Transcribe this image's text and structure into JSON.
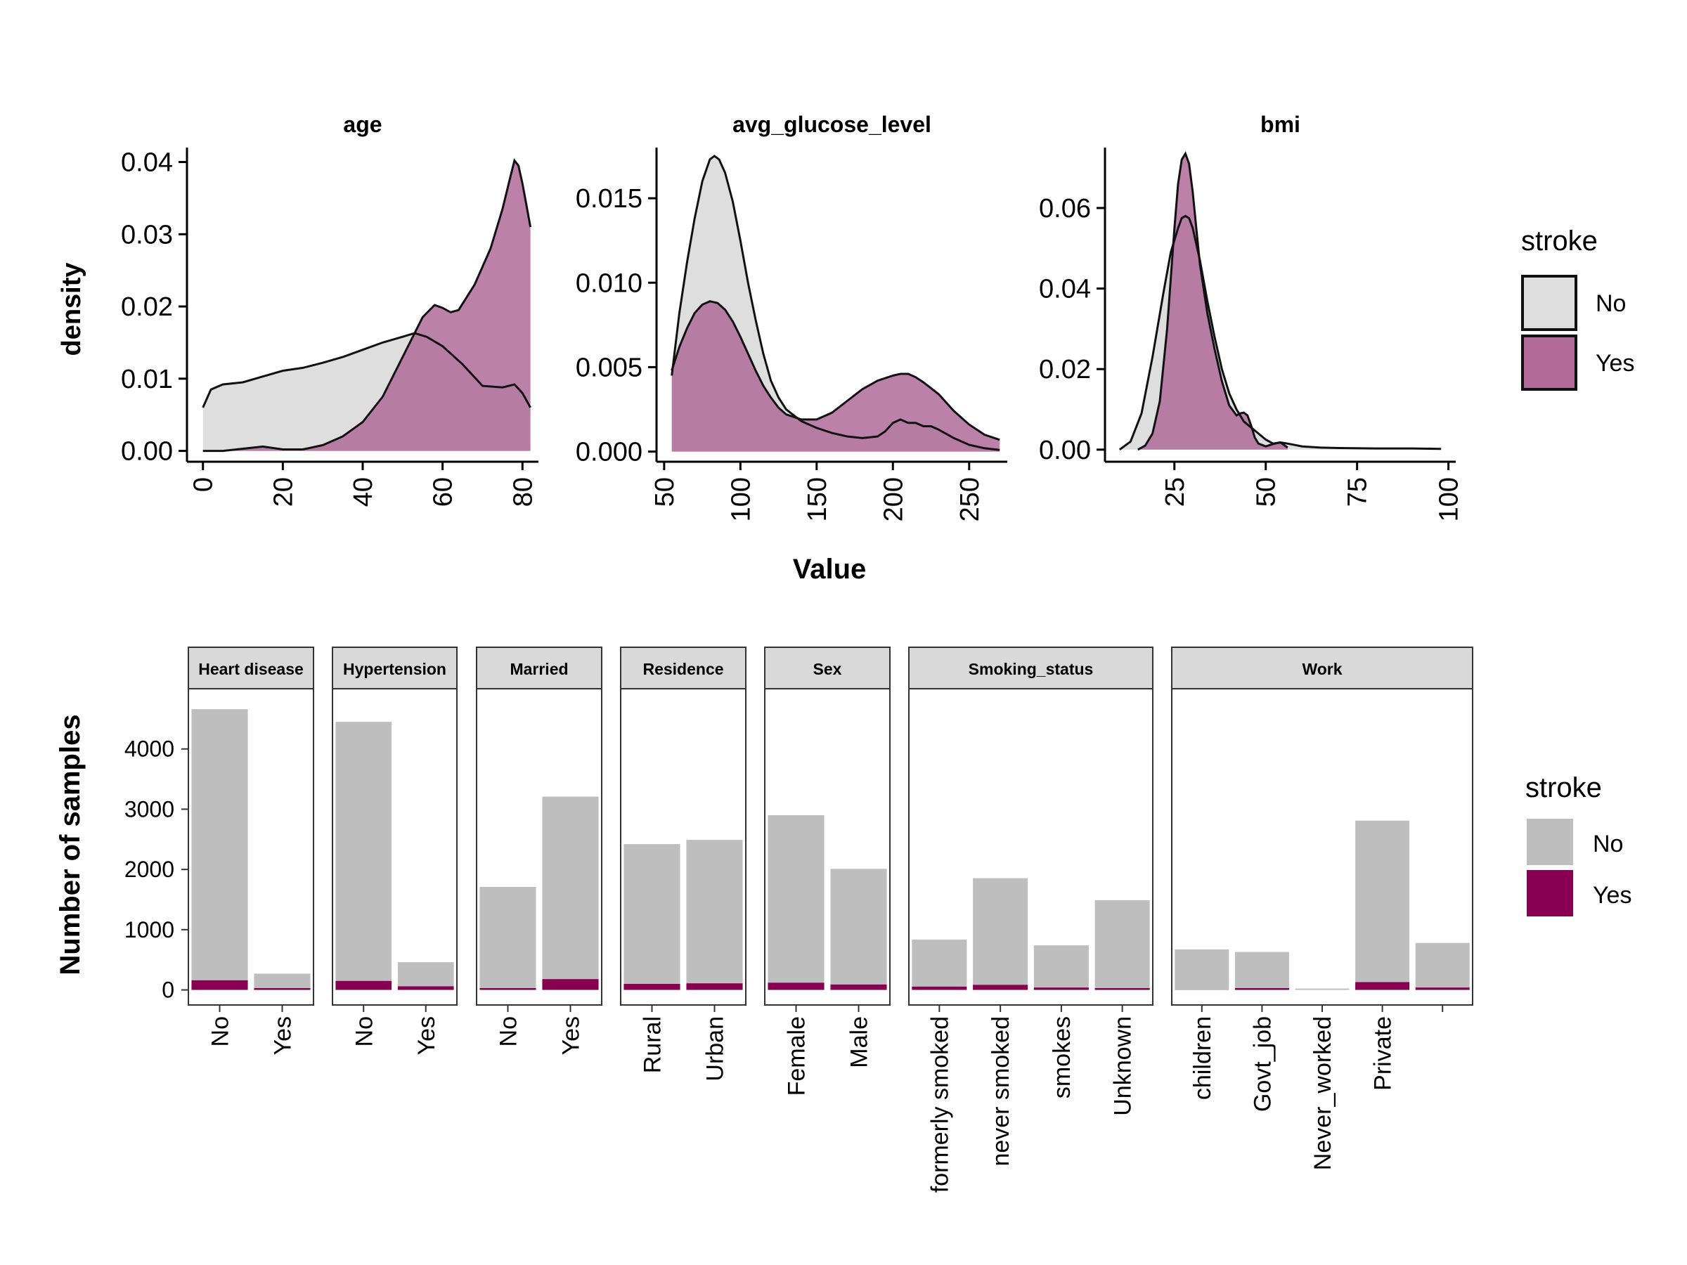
{
  "colors": {
    "no_density": "#dedede",
    "yes_density": "#b06b9a",
    "no_bar": "#bebebe",
    "yes_bar": "#870052",
    "strip": "#d9d9d9"
  },
  "chart_data": [
    {
      "type": "area",
      "panel_group": "density",
      "ylabel": "density",
      "xlabel": "Value",
      "legend_title": "stroke",
      "legend_position": "right",
      "legend": [
        "No",
        "Yes"
      ],
      "facets": [
        {
          "title": "age",
          "xlim": [
            -4,
            84
          ],
          "ylim": [
            -0.0015,
            0.042
          ],
          "xticks": [
            0,
            20,
            40,
            60,
            80
          ],
          "yticks": [
            0.0,
            0.01,
            0.02,
            0.03,
            0.04
          ],
          "ytick_labels": [
            "0.00",
            "0.01",
            "0.02",
            "0.03",
            "0.04"
          ],
          "series": [
            {
              "name": "No",
              "x": [
                0,
                2,
                5,
                10,
                15,
                20,
                25,
                30,
                35,
                40,
                45,
                50,
                53,
                56,
                60,
                65,
                70,
                75,
                78,
                80,
                82
              ],
              "y": [
                0.006,
                0.0085,
                0.0092,
                0.0095,
                0.0103,
                0.0111,
                0.0115,
                0.0122,
                0.013,
                0.014,
                0.015,
                0.0158,
                0.0163,
                0.0158,
                0.0145,
                0.012,
                0.009,
                0.0088,
                0.0092,
                0.008,
                0.006
              ]
            },
            {
              "name": "Yes",
              "x": [
                0,
                5,
                10,
                15,
                20,
                25,
                30,
                35,
                40,
                45,
                50,
                55,
                58,
                60,
                62,
                64,
                68,
                72,
                75,
                77,
                78,
                79,
                80,
                81,
                82
              ],
              "y": [
                0.0,
                0.0,
                0.0003,
                0.0006,
                0.0002,
                0.0002,
                0.0008,
                0.002,
                0.004,
                0.0075,
                0.013,
                0.0185,
                0.0202,
                0.0198,
                0.0192,
                0.0195,
                0.023,
                0.028,
                0.0335,
                0.038,
                0.0402,
                0.0395,
                0.037,
                0.034,
                0.031
              ]
            }
          ]
        },
        {
          "title": "avg_glucose_level",
          "xlim": [
            45,
            275
          ],
          "ylim": [
            -0.0006,
            0.018
          ],
          "xticks": [
            50,
            100,
            150,
            200,
            250
          ],
          "yticks": [
            0.0,
            0.005,
            0.01,
            0.015
          ],
          "ytick_labels": [
            "0.000",
            "0.005",
            "0.010",
            "0.015"
          ],
          "series": [
            {
              "name": "No",
              "x": [
                55,
                60,
                65,
                70,
                75,
                80,
                83,
                86,
                90,
                95,
                100,
                105,
                110,
                115,
                120,
                125,
                130,
                140,
                150,
                160,
                170,
                180,
                190,
                195,
                200,
                205,
                210,
                215,
                220,
                225,
                230,
                240,
                250,
                260,
                270
              ],
              "y": [
                0.0045,
                0.0082,
                0.0112,
                0.0138,
                0.016,
                0.0173,
                0.0175,
                0.0173,
                0.0165,
                0.0148,
                0.0125,
                0.01,
                0.0078,
                0.0058,
                0.0042,
                0.0032,
                0.0025,
                0.0018,
                0.0014,
                0.0011,
                0.0009,
                0.0008,
                0.0009,
                0.0012,
                0.0017,
                0.0019,
                0.0017,
                0.0017,
                0.0015,
                0.0015,
                0.0013,
                0.0008,
                0.0004,
                0.0002,
                0.0001
              ]
            },
            {
              "name": "Yes",
              "x": [
                55,
                60,
                65,
                70,
                75,
                80,
                85,
                90,
                95,
                100,
                105,
                110,
                115,
                120,
                125,
                130,
                140,
                150,
                160,
                170,
                180,
                190,
                200,
                205,
                210,
                215,
                220,
                230,
                240,
                250,
                260,
                270
              ],
              "y": [
                0.0048,
                0.0062,
                0.0073,
                0.0082,
                0.0087,
                0.0089,
                0.0088,
                0.0084,
                0.0077,
                0.0068,
                0.0058,
                0.0048,
                0.0039,
                0.0032,
                0.0026,
                0.0022,
                0.0019,
                0.0019,
                0.0023,
                0.003,
                0.0037,
                0.0042,
                0.0045,
                0.0046,
                0.0046,
                0.0044,
                0.0041,
                0.0034,
                0.0024,
                0.0016,
                0.001,
                0.0007
              ]
            }
          ]
        },
        {
          "title": "bmi",
          "xlim": [
            6,
            102
          ],
          "ylim": [
            -0.003,
            0.075
          ],
          "xticks": [
            25,
            50,
            75,
            100
          ],
          "yticks": [
            0.0,
            0.02,
            0.04,
            0.06
          ],
          "ytick_labels": [
            "0.00",
            "0.02",
            "0.04",
            "0.06"
          ],
          "series": [
            {
              "name": "No",
              "x": [
                10,
                13,
                16,
                19,
                22,
                24,
                26,
                27,
                28,
                29,
                30,
                32,
                34,
                36,
                38,
                40,
                42,
                44,
                46,
                48,
                50,
                52,
                54,
                56,
                60,
                65,
                70,
                80,
                90,
                98
              ],
              "y": [
                0.0,
                0.002,
                0.009,
                0.023,
                0.039,
                0.049,
                0.055,
                0.0575,
                0.058,
                0.0575,
                0.055,
                0.047,
                0.037,
                0.028,
                0.02,
                0.014,
                0.01,
                0.007,
                0.0055,
                0.004,
                0.0025,
                0.0015,
                0.0018,
                0.0015,
                0.0008,
                0.0005,
                0.0004,
                0.0003,
                0.0003,
                0.0002
              ]
            },
            {
              "name": "Yes",
              "x": [
                15,
                17,
                19,
                21,
                23,
                25,
                26,
                27,
                28,
                29,
                30,
                31,
                32,
                34,
                36,
                38,
                40,
                42,
                43,
                44,
                45,
                46,
                47,
                48,
                50,
                52,
                54,
                56
              ],
              "y": [
                0.0,
                0.001,
                0.004,
                0.012,
                0.03,
                0.055,
                0.066,
                0.072,
                0.0735,
                0.071,
                0.064,
                0.055,
                0.046,
                0.034,
                0.025,
                0.017,
                0.011,
                0.0085,
                0.009,
                0.0092,
                0.0085,
                0.006,
                0.003,
                0.0015,
                0.0008,
                0.0014,
                0.0018,
                0.0005
              ]
            }
          ]
        }
      ]
    },
    {
      "type": "bar",
      "panel_group": "counts",
      "stacked": true,
      "ylabel": "Number of samples",
      "legend_title": "stroke",
      "legend_position": "right",
      "legend": [
        "No",
        "Yes"
      ],
      "ylim": [
        -250,
        5000
      ],
      "yticks": [
        0,
        1000,
        2000,
        3000,
        4000
      ],
      "facets": [
        {
          "title": "Heart disease",
          "categories": [
            "No",
            "Yes"
          ],
          "series": [
            {
              "name": "No",
              "values": [
                4500,
                240
              ]
            },
            {
              "name": "Yes",
              "values": [
                160,
                30
              ]
            }
          ]
        },
        {
          "title": "Hypertension",
          "categories": [
            "No",
            "Yes"
          ],
          "series": [
            {
              "name": "No",
              "values": [
                4300,
                400
              ]
            },
            {
              "name": "Yes",
              "values": [
                150,
                60
              ]
            }
          ]
        },
        {
          "title": "Married",
          "categories": [
            "No",
            "Yes"
          ],
          "series": [
            {
              "name": "No",
              "values": [
                1680,
                3030
              ]
            },
            {
              "name": "Yes",
              "values": [
                30,
                180
              ]
            }
          ]
        },
        {
          "title": "Residence",
          "categories": [
            "Rural",
            "Urban"
          ],
          "series": [
            {
              "name": "No",
              "values": [
                2320,
                2380
              ]
            },
            {
              "name": "Yes",
              "values": [
                100,
                110
              ]
            }
          ]
        },
        {
          "title": "Sex",
          "categories": [
            "Female",
            "Male"
          ],
          "series": [
            {
              "name": "No",
              "values": [
                2780,
                1920
              ]
            },
            {
              "name": "Yes",
              "values": [
                120,
                90
              ]
            }
          ]
        },
        {
          "title": "Smoking_status",
          "categories": [
            "formerly smoked",
            "never smoked",
            "smokes",
            "Unknown"
          ],
          "series": [
            {
              "name": "No",
              "values": [
                780,
                1770,
                700,
                1460
              ]
            },
            {
              "name": "Yes",
              "values": [
                55,
                85,
                40,
                30
              ]
            }
          ]
        },
        {
          "title": "Work",
          "categories": [
            "children",
            "Govt_job",
            "Never_worked",
            "Private"
          ],
          "series": [
            {
              "name": "No",
              "values": [
                670,
                600,
                22,
                2680
              ]
            },
            {
              "name": "Yes",
              "values": [
                2,
                30,
                0,
                130
              ]
            }
          ]
        }
      ]
    }
  ]
}
